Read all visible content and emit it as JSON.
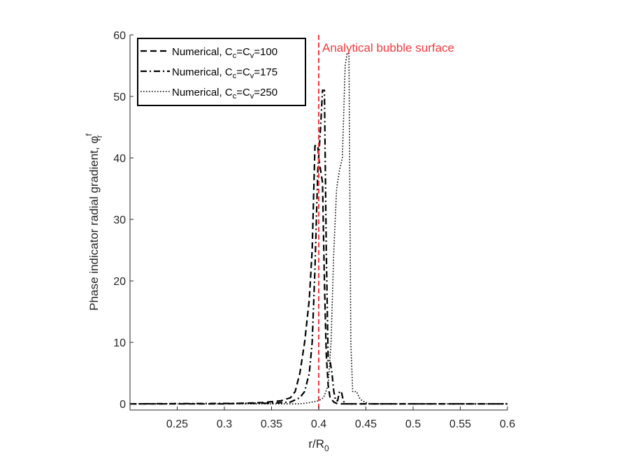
{
  "chart_data": {
    "type": "line",
    "title": "",
    "xlabel_main": "r/R",
    "xlabel_sub": "0",
    "ylabel_main": "Phase indicator radial gradient, φ",
    "ylabel_sub": "r",
    "ylabel_sup": "f",
    "xlim": [
      0.2,
      0.6
    ],
    "ylim": [
      -1,
      60
    ],
    "xticks": [
      0.25,
      0.3,
      0.35,
      0.4,
      0.45,
      0.5,
      0.55,
      0.6
    ],
    "xtick_labels": [
      "0.25",
      "0.3",
      "0.35",
      "0.4",
      "0.45",
      "0.5",
      "0.55",
      "0.6"
    ],
    "yticks": [
      0,
      10,
      20,
      30,
      40,
      50,
      60
    ],
    "ytick_labels": [
      "0",
      "10",
      "20",
      "30",
      "40",
      "50",
      "60"
    ],
    "grid": false,
    "legend_position": "top-left",
    "series": [
      {
        "name_prefix": "Numerical, C",
        "name_sub1": "c",
        "name_mid": "=C",
        "name_sub2": "v",
        "name_suffix": "=100",
        "style": "dashed",
        "x": [
          0.2,
          0.3,
          0.34,
          0.36,
          0.37,
          0.375,
          0.38,
          0.385,
          0.39,
          0.393,
          0.396,
          0.399,
          0.4,
          0.402,
          0.404,
          0.406,
          0.408,
          0.41,
          0.412,
          0.416,
          0.42,
          0.6
        ],
        "y": [
          0,
          0,
          0.2,
          0.5,
          1,
          2,
          5,
          10,
          17,
          25,
          42,
          42,
          40,
          38,
          36,
          20,
          8,
          3,
          1,
          0.3,
          0,
          0
        ]
      },
      {
        "name_prefix": "Numerical, C",
        "name_sub1": "c",
        "name_mid": "=C",
        "name_sub2": "v",
        "name_suffix": "=175",
        "style": "dashdot",
        "x": [
          0.2,
          0.35,
          0.37,
          0.38,
          0.385,
          0.39,
          0.393,
          0.396,
          0.399,
          0.402,
          0.404,
          0.406,
          0.408,
          0.41,
          0.412,
          0.414,
          0.416,
          0.418,
          0.42,
          0.422,
          0.424,
          0.426,
          0.428,
          0.432,
          0.6
        ],
        "y": [
          0,
          0.1,
          0.3,
          1,
          2,
          5,
          10,
          22,
          38,
          45,
          51,
          51,
          25,
          7,
          7,
          5,
          2,
          0.5,
          0.5,
          2,
          2,
          0.5,
          0,
          0,
          0
        ]
      },
      {
        "name_prefix": "Numerical, C",
        "name_sub1": "c",
        "name_mid": "=C",
        "name_sub2": "v",
        "name_suffix": "=250",
        "style": "dotted",
        "x": [
          0.2,
          0.38,
          0.39,
          0.4,
          0.405,
          0.41,
          0.413,
          0.416,
          0.419,
          0.422,
          0.425,
          0.428,
          0.43,
          0.432,
          0.434,
          0.436,
          0.438,
          0.44,
          0.443,
          0.446,
          0.449,
          0.452,
          0.455,
          0.6
        ],
        "y": [
          0,
          0,
          0.2,
          0.5,
          1,
          3,
          10,
          25,
          35,
          38,
          40,
          55,
          57,
          57,
          10,
          2,
          2,
          2,
          1,
          0.5,
          0.3,
          0.1,
          0,
          0
        ]
      }
    ],
    "annotations": [
      {
        "text": "Analytical bubble surface",
        "x": 0.4,
        "style": "dashed-vertical",
        "color": "#ee3b3b"
      }
    ]
  }
}
